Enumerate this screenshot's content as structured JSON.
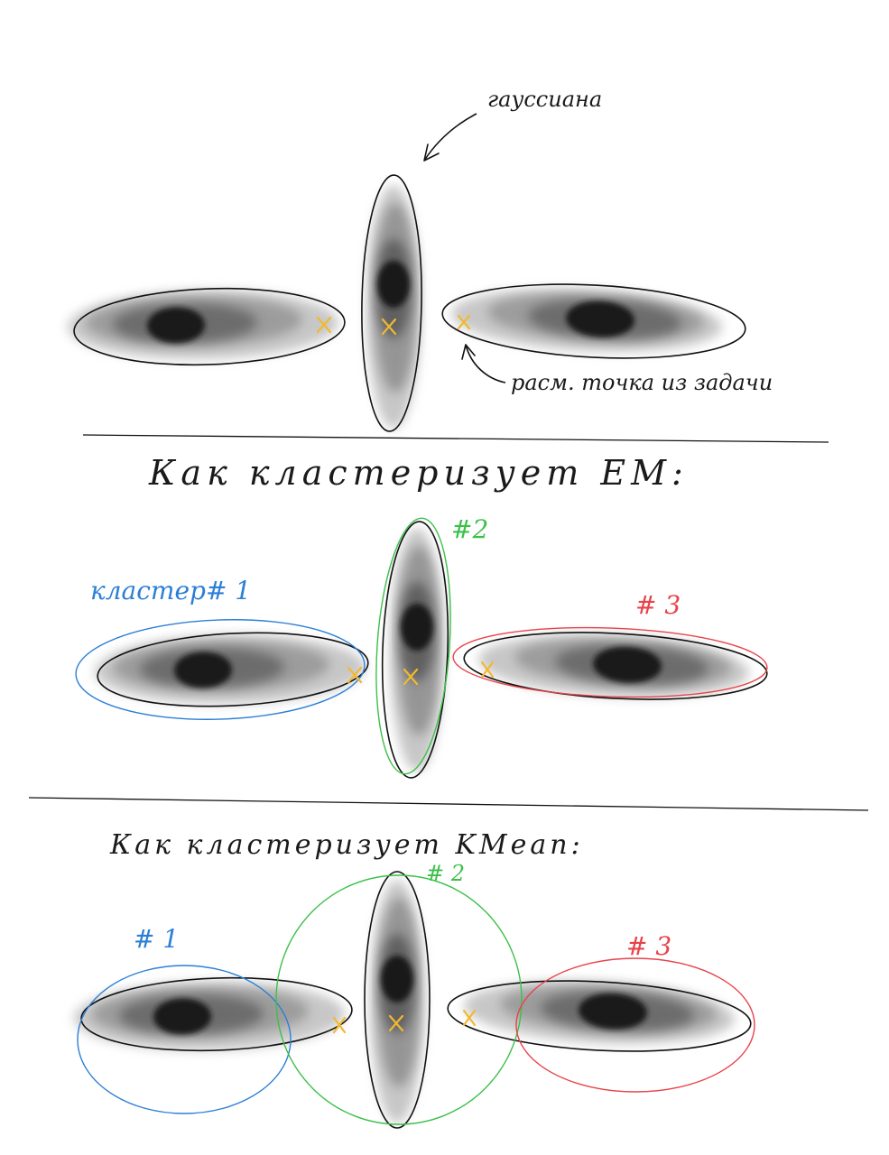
{
  "labels": {
    "gaussian": "гауссиана",
    "point_from_task": "расм. точка из задачи",
    "em_heading": "Как кластеризует ЕМ:",
    "kmeans_heading": "Как кластеризует KMean:"
  },
  "em_clusters": {
    "c1": "кластер# 1",
    "c2": "#2",
    "c3": "# 3"
  },
  "kmeans_clusters": {
    "c1": "# 1",
    "c2": "# 2",
    "c3": "# 3"
  },
  "colors": {
    "ink": "#111111",
    "cluster_1": "#2b7fd6",
    "cluster_2": "#3cc04a",
    "cluster_3": "#e8424a",
    "point_mark": "#f2b830",
    "gaussian_fill": "#8a8a8a",
    "gaussian_core": "#151515"
  }
}
